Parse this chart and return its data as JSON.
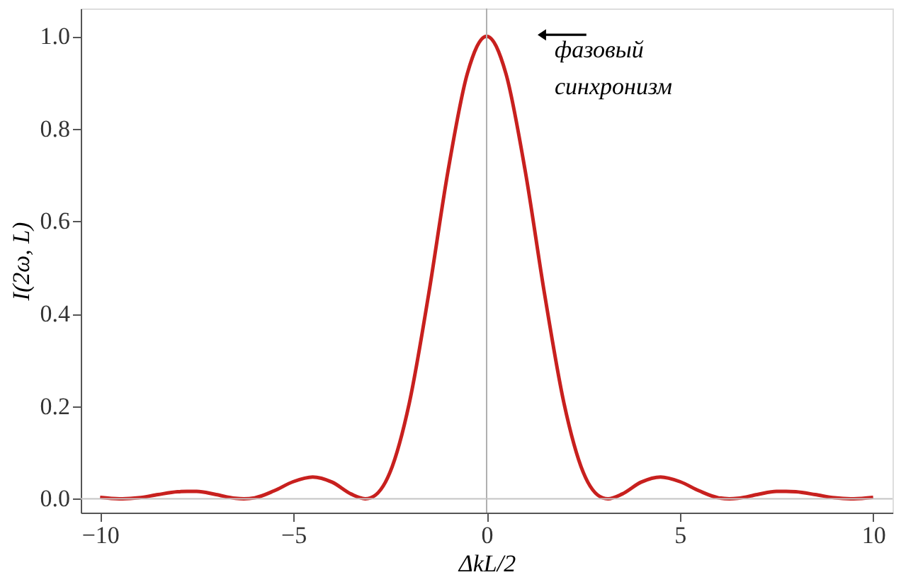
{
  "chart_data": {
    "type": "line",
    "xlabel": "ΔkL/2",
    "ylabel": "I(2ω, L)",
    "x": [
      -10,
      -9.5,
      -9.42,
      -9,
      -8.5,
      -8,
      -7.75,
      -7.5,
      -7,
      -6.5,
      -6.28,
      -6,
      -5.5,
      -5,
      -4.5,
      -4,
      -3.5,
      -3.14,
      -3,
      -2.5,
      -2,
      -1.5,
      -1,
      -0.5,
      0,
      0.5,
      1,
      1.5,
      2,
      2.5,
      3,
      3.14,
      3.5,
      4,
      4.5,
      5,
      5.5,
      6,
      6.28,
      6.5,
      7,
      7.5,
      7.75,
      8,
      8.5,
      9,
      9.42,
      9.5,
      10
    ],
    "series": [
      {
        "color": "#c8201e",
        "values": [
          0.003,
          0.0,
          0.0,
          0.002,
          0.009,
          0.015,
          0.016,
          0.016,
          0.009,
          0.001,
          0.0,
          0.002,
          0.017,
          0.037,
          0.047,
          0.036,
          0.01,
          0.0,
          0.002,
          0.057,
          0.207,
          0.442,
          0.708,
          0.919,
          1.0,
          0.919,
          0.708,
          0.442,
          0.207,
          0.057,
          0.002,
          0.0,
          0.01,
          0.036,
          0.047,
          0.037,
          0.017,
          0.002,
          0.0,
          0.001,
          0.009,
          0.016,
          0.016,
          0.015,
          0.009,
          0.002,
          0.0,
          0.0,
          0.003
        ]
      }
    ],
    "xlim": [
      -10.5,
      10.5
    ],
    "xticks": [
      -10,
      -5,
      0,
      5,
      10
    ],
    "ylim": [
      -0.03,
      1.06
    ],
    "yticks": [
      {
        "value": 0,
        "label": "0.0"
      },
      0.2,
      0.4,
      0.6,
      0.8,
      {
        "value": 1,
        "label": "1.0"
      }
    ],
    "ref_lines": [
      {
        "axis": "x",
        "value": 0,
        "color": "#b0b0b0"
      },
      {
        "axis": "y",
        "value": 0,
        "color": "#c4c4c4"
      }
    ],
    "annotations": [
      {
        "text": "фазовый\nсинхронизм",
        "x": 0,
        "y": 1.0
      }
    ],
    "grid": false,
    "marker": "none",
    "line_style": "solid"
  }
}
